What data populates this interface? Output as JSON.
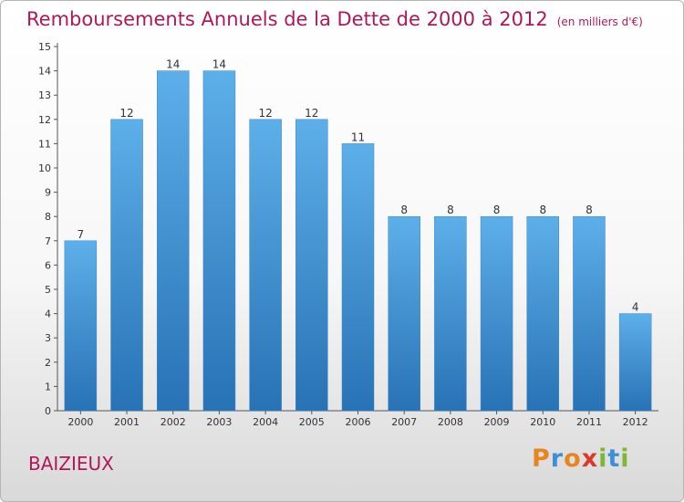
{
  "title": "Remboursements Annuels de la Dette de 2000 à 2012",
  "unit": "(en milliers d'€)",
  "commune": "BAIZIEUX",
  "logo": {
    "letters": [
      "P",
      "r",
      "o",
      "x",
      "i",
      "t",
      "i"
    ],
    "colors": [
      "#e8851e",
      "#3d8fd8",
      "#e8851e",
      "#d93a2a",
      "#7cb833",
      "#3d8fd8",
      "#7cb833"
    ]
  },
  "colors": {
    "accent": "#b0185a",
    "bar_top": "#5dafe9",
    "bar_bottom": "#2872b5"
  },
  "chart_data": {
    "type": "bar",
    "categories": [
      "2000",
      "2001",
      "2002",
      "2003",
      "2004",
      "2005",
      "2006",
      "2007",
      "2008",
      "2009",
      "2010",
      "2011",
      "2012"
    ],
    "values": [
      7,
      12,
      14,
      14,
      12,
      12,
      11,
      8,
      8,
      8,
      8,
      8,
      4
    ],
    "ylim": [
      0,
      15
    ],
    "yticks": [
      "0",
      "1",
      "2",
      "3",
      "4",
      "5",
      "6",
      "7",
      "8",
      "9",
      "10",
      "11",
      "12",
      "13",
      "14",
      "15"
    ],
    "grid": false,
    "legend": "none"
  }
}
